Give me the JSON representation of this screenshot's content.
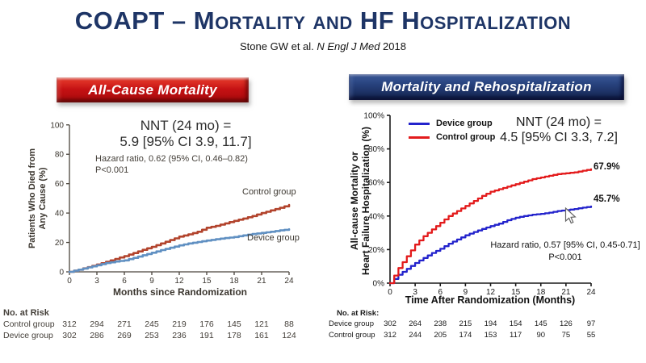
{
  "slide": {
    "title": "COAPT – Mortality and HF Hospitalization",
    "citation": {
      "prefix": "Stone GW et al. ",
      "journal": "N Engl J Med",
      "year": " 2018"
    }
  },
  "panels": {
    "left": {
      "banner": "All-Cause Mortality",
      "nnt_line1": "NNT (24 mo) =",
      "nnt_line2": "5.9 [95% CI 3.9, 11.7]",
      "hazard_line1": "Hazard ratio, 0.62 (95% CI, 0.46–0.82)",
      "hazard_line2": "P<0.001",
      "curve_label_top": "Control group",
      "curve_label_bottom": "Device group",
      "ylabel_line1": "Patients Who Died from",
      "ylabel_line2": "Any Cause (%)",
      "xlabel": "Months since Randomization"
    },
    "right": {
      "banner": "Mortality and Rehospitalization",
      "nnt_line1": "NNT (24 mo) =",
      "nnt_line2": "4.5 [95% CI 3.3, 7.2]",
      "hazard_line1": "Hazard ratio, 0.57 [95% CI, 0.45-0.71]",
      "hazard_line2": "P<0.001",
      "end_label_control": "67.9%",
      "end_label_device": "45.7%",
      "ylabel_line1": "All-cause Mortality or",
      "ylabel_line2": "Heart Failure Hospitalization (%)",
      "xlabel": "Time After Randomization (Months)"
    }
  },
  "chart_data": [
    {
      "type": "line",
      "title": "All-Cause Mortality",
      "xlabel": "Months since Randomization",
      "ylabel": "Patients Who Died from Any Cause (%)",
      "xlim": [
        0,
        24
      ],
      "ylim": [
        0,
        100
      ],
      "xticks": [
        0,
        3,
        6,
        9,
        12,
        15,
        18,
        21,
        24
      ],
      "yticks": [
        0,
        20,
        40,
        60,
        80,
        100
      ],
      "ytick_suffix": "",
      "x": [
        0,
        1,
        2,
        3,
        4,
        5,
        6,
        7,
        8,
        9,
        10,
        11,
        12,
        13,
        14,
        15,
        16,
        17,
        18,
        19,
        20,
        21,
        22,
        23,
        24
      ],
      "series": [
        {
          "name": "Control group",
          "color": "#b2432c",
          "values": [
            0,
            1.5,
            3.2,
            5,
            6.8,
            8.8,
            10.7,
            12.8,
            15,
            17,
            19.3,
            21.6,
            24,
            25.5,
            27.3,
            30,
            31.3,
            33,
            34.7,
            36.3,
            38,
            40,
            41.8,
            43.6,
            45.5
          ]
        },
        {
          "name": "Device group",
          "color": "#6090c2",
          "values": [
            0,
            1.5,
            3,
            4.5,
            6,
            7,
            7.8,
            9.5,
            11.3,
            13,
            14.8,
            16.4,
            18,
            19.3,
            20.3,
            21.3,
            22.2,
            23,
            23.7,
            24.8,
            25.8,
            26.5,
            27.3,
            28.2,
            29
          ]
        }
      ],
      "risk_table": {
        "header": "No. at Risk",
        "rows": [
          {
            "label": "Control group",
            "values": [
              312,
              294,
              271,
              245,
              219,
              176,
              145,
              121,
              88
            ]
          },
          {
            "label": "Device group",
            "values": [
              302,
              286,
              269,
              253,
              236,
              191,
              178,
              161,
              124
            ]
          }
        ]
      }
    },
    {
      "type": "line",
      "title": "Mortality and Rehospitalization",
      "xlabel": "Time After Randomization (Months)",
      "ylabel": "All-cause Mortality or Heart Failure Hospitalization (%)",
      "xlim": [
        0,
        24
      ],
      "ylim": [
        0,
        100
      ],
      "xticks": [
        0,
        3,
        6,
        9,
        12,
        15,
        18,
        21,
        24
      ],
      "yticks": [
        0,
        20,
        40,
        60,
        80,
        100
      ],
      "ytick_suffix": "%",
      "x": [
        0,
        1,
        2,
        3,
        4,
        5,
        6,
        7,
        8,
        9,
        10,
        11,
        12,
        13,
        14,
        15,
        16,
        17,
        18,
        19,
        20,
        21,
        22,
        23,
        24
      ],
      "series": [
        {
          "name": "Device group",
          "color": "#2323cc",
          "values": [
            0,
            5,
            8.5,
            12,
            15,
            18,
            20.5,
            23.5,
            26,
            28.5,
            30.5,
            32.3,
            34,
            35.5,
            37.5,
            39,
            40,
            40.8,
            41.3,
            42,
            43,
            43.5,
            44.2,
            45,
            45.7
          ]
        },
        {
          "name": "Control group",
          "color": "#e31b1c",
          "values": [
            0,
            9,
            16,
            23,
            28,
            32,
            36,
            40,
            43,
            46,
            49,
            52,
            54.5,
            56,
            57.5,
            59,
            60.5,
            62,
            63,
            64,
            65,
            65.5,
            66,
            67,
            67.9
          ]
        }
      ],
      "risk_table": {
        "header": "No. at Risk:",
        "rows": [
          {
            "label": "Device group",
            "values": [
              302,
              264,
              238,
              215,
              194,
              154,
              145,
              126,
              97
            ]
          },
          {
            "label": "Control group",
            "values": [
              312,
              244,
              205,
              174,
              153,
              117,
              90,
              75,
              55
            ]
          }
        ]
      }
    }
  ]
}
